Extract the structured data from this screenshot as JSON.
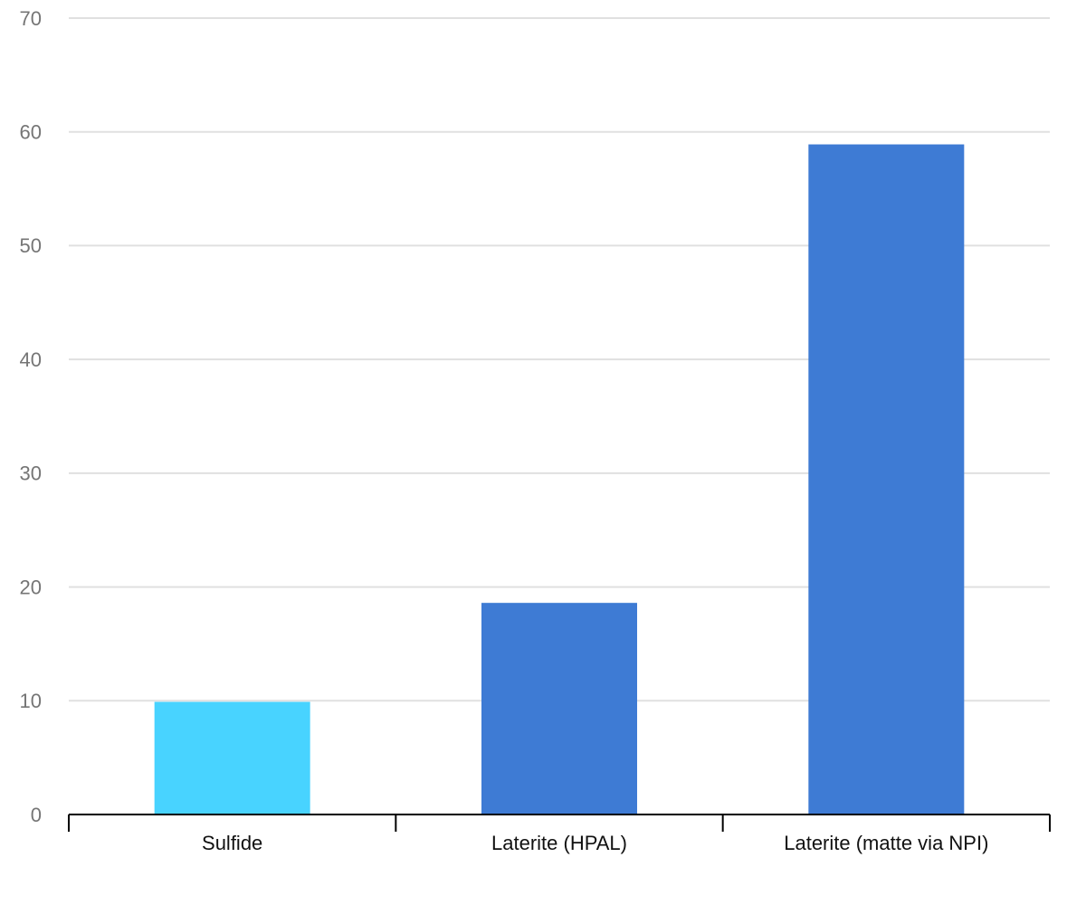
{
  "chart_data": {
    "type": "bar",
    "categories": [
      "Sulfide",
      "Laterite (HPAL)",
      "Laterite (matte via NPI)"
    ],
    "values": [
      9.9,
      18.6,
      58.9
    ],
    "colors": [
      "#48d3ff",
      "#3e7bd4",
      "#3e7bd4"
    ],
    "ylim": [
      0,
      70
    ],
    "yticks": [
      0,
      10,
      20,
      30,
      40,
      50,
      60,
      70
    ],
    "grid": true
  }
}
